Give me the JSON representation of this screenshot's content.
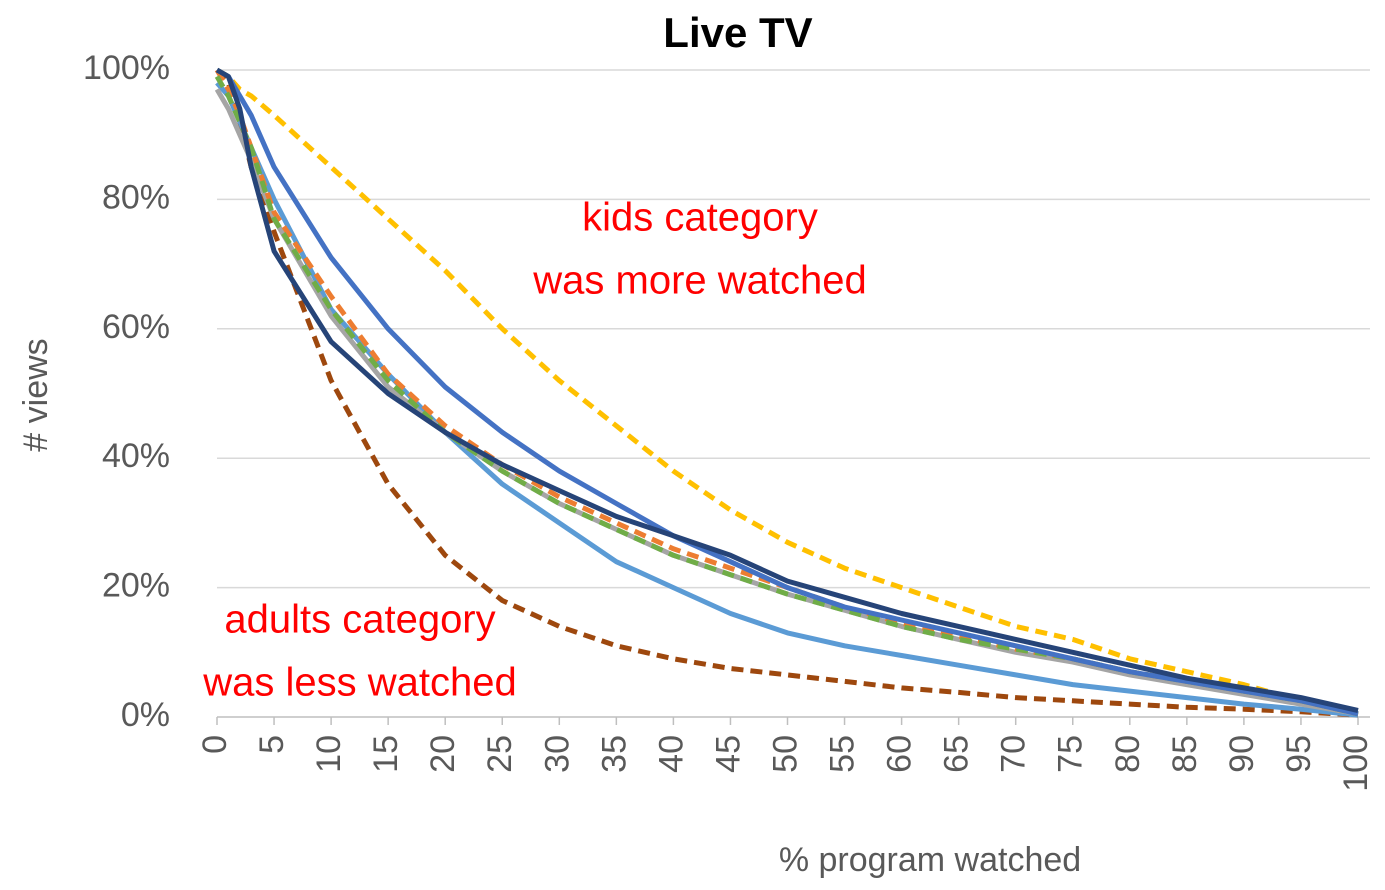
{
  "chart_data": {
    "type": "line",
    "title": "Live TV",
    "x_label": "% program watched",
    "y_label": "# views",
    "x": [
      0,
      1,
      2,
      3,
      5,
      10,
      15,
      20,
      25,
      30,
      35,
      40,
      45,
      50,
      55,
      60,
      65,
      70,
      75,
      80,
      85,
      90,
      95,
      100
    ],
    "xlim": [
      0,
      100
    ],
    "xticks": [
      0,
      5,
      10,
      15,
      20,
      25,
      30,
      35,
      40,
      45,
      50,
      55,
      60,
      65,
      70,
      75,
      80,
      85,
      90,
      95,
      100
    ],
    "ylim": [
      0,
      100
    ],
    "yticks": [
      {
        "value": 0,
        "label": "0%"
      },
      {
        "value": 20,
        "label": "20%"
      },
      {
        "value": 40,
        "label": "40%"
      },
      {
        "value": 60,
        "label": "60%"
      },
      {
        "value": 80,
        "label": "80%"
      },
      {
        "value": 100,
        "label": "100%"
      }
    ],
    "grid": true,
    "series": [
      {
        "color": "#FFC000",
        "dashed": true,
        "values": [
          100,
          99,
          97,
          96,
          93,
          85,
          77,
          69,
          60,
          52,
          45,
          38,
          32,
          27,
          23,
          20,
          17,
          14,
          12,
          9,
          7,
          5,
          2.5,
          0.5
        ]
      },
      {
        "color": "#9E480E",
        "dashed": true,
        "values": [
          100,
          98,
          92,
          85,
          75,
          52,
          36,
          25,
          18,
          14,
          11,
          9,
          7.5,
          6.5,
          5.5,
          4.5,
          3.8,
          3,
          2.5,
          2,
          1.5,
          1.2,
          0.8,
          0.3
        ]
      },
      {
        "color": "#5B9BD5",
        "dashed": false,
        "values": [
          98,
          96,
          92,
          88,
          80,
          63,
          53,
          44,
          36,
          30,
          24,
          20,
          16,
          13,
          11,
          9.5,
          8,
          6.5,
          5,
          4,
          3,
          2,
          1.2,
          0.3
        ]
      },
      {
        "color": "#A5A5A5",
        "dashed": false,
        "values": [
          97,
          94,
          90,
          86,
          77,
          62,
          51,
          44,
          38,
          33,
          29,
          25,
          22,
          19,
          16.5,
          14,
          12,
          10,
          8.5,
          6.5,
          5,
          3.5,
          2,
          0.5
        ]
      },
      {
        "color": "#ED7D31",
        "dashed": true,
        "values": [
          100,
          97,
          93,
          88,
          78,
          65,
          53,
          45,
          39,
          34,
          30,
          26,
          23,
          20,
          17,
          14.5,
          12.5,
          10.5,
          9,
          7,
          5.5,
          4,
          2.5,
          0.5
        ]
      },
      {
        "color": "#70AD47",
        "dashed": true,
        "values": [
          99,
          96,
          92,
          88,
          77,
          63,
          52,
          44,
          38,
          33,
          29,
          25,
          22,
          19,
          16.5,
          14,
          12,
          10.5,
          9,
          7,
          5.5,
          4,
          2.5,
          0.5
        ]
      },
      {
        "color": "#4472C4",
        "dashed": false,
        "values": [
          100,
          99,
          96,
          93,
          85,
          71,
          60,
          51,
          44,
          38,
          33,
          28,
          24,
          20,
          17,
          15,
          13,
          11,
          9,
          7,
          5.5,
          4,
          2.5,
          0.5
        ]
      },
      {
        "color": "#264478",
        "dashed": false,
        "values": [
          100,
          99,
          94,
          85,
          72,
          58,
          50,
          44,
          39,
          35,
          31,
          28,
          25,
          21,
          18.5,
          16,
          14,
          12,
          10,
          8,
          6,
          4.5,
          3,
          1
        ]
      }
    ],
    "annotations": [
      {
        "lines": [
          "kids category",
          "was more watched"
        ]
      },
      {
        "lines": [
          "adults category",
          "was less watched"
        ]
      }
    ]
  }
}
